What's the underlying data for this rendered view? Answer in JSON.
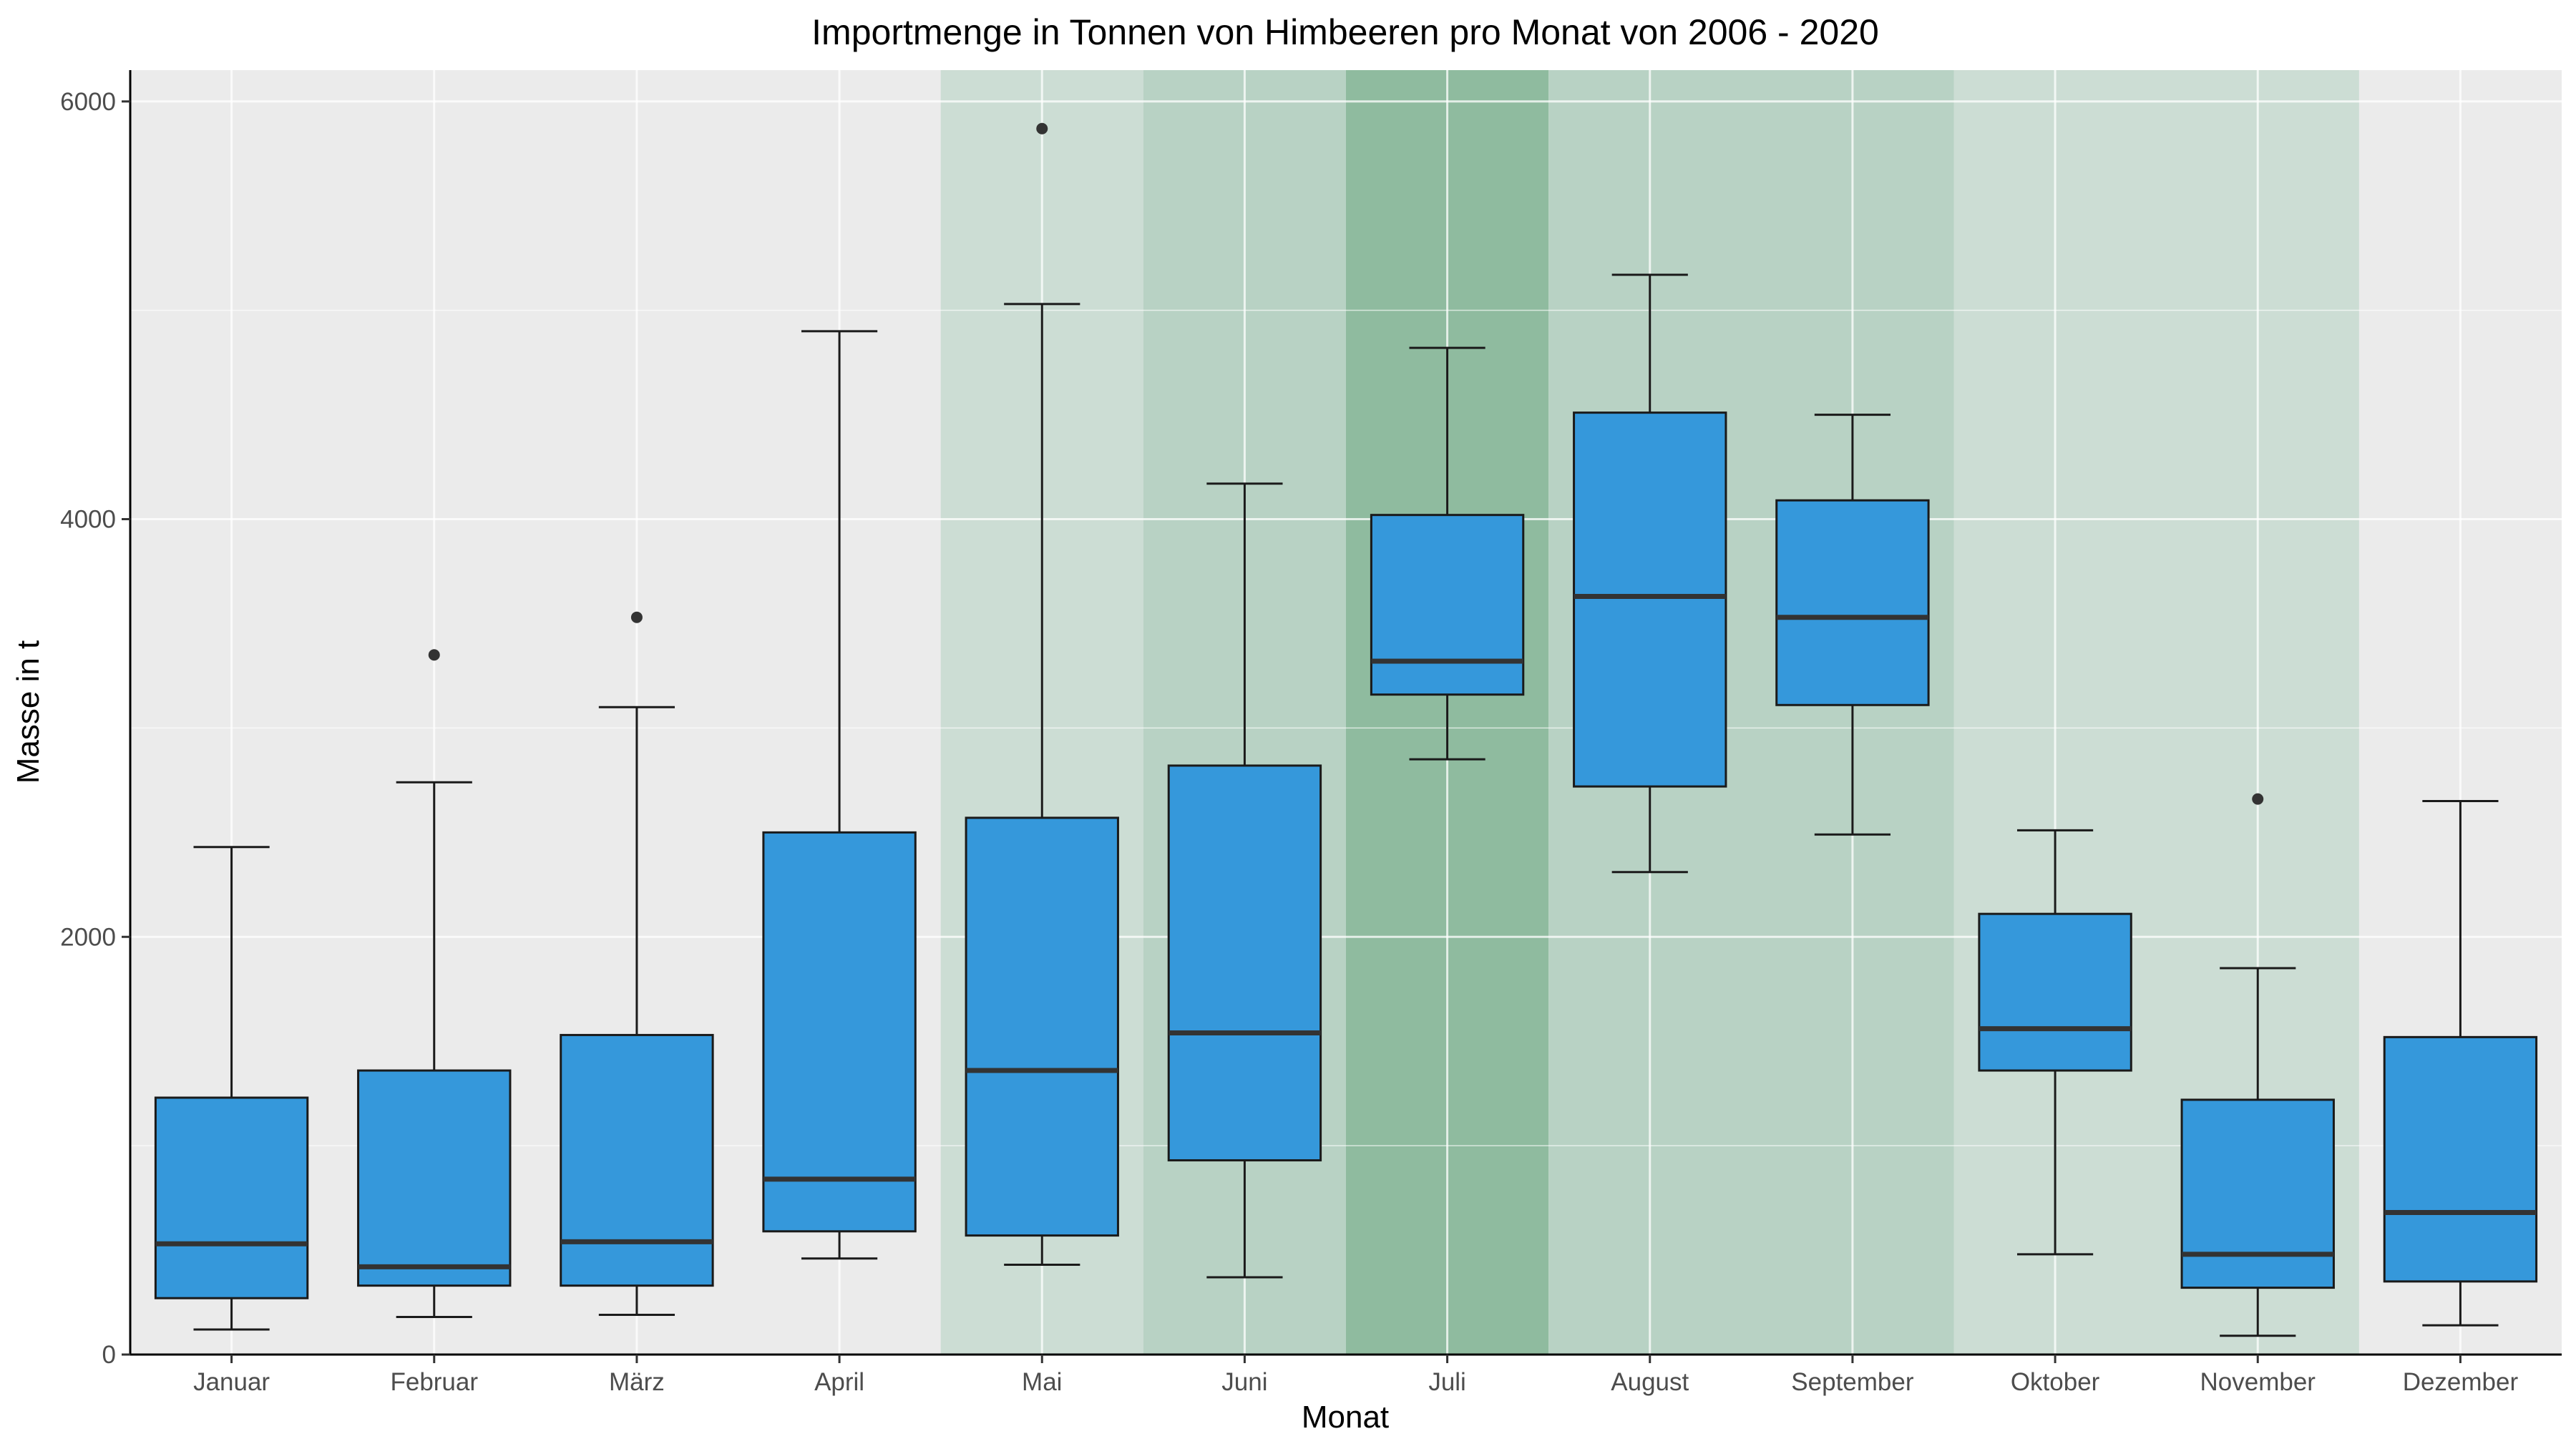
{
  "chart_data": {
    "type": "boxplot",
    "title": "Importmenge in Tonnen von Himbeeren pro Monat von 2006 - 2020",
    "xlabel": "Monat",
    "ylabel": "Masse in t",
    "ylim": [
      0,
      6150
    ],
    "yticks": [
      0,
      2000,
      4000,
      6000
    ],
    "grid": true,
    "categories": [
      "Januar",
      "Februar",
      "März",
      "April",
      "Mai",
      "Juni",
      "Juli",
      "August",
      "September",
      "Oktober",
      "November",
      "Dezember"
    ],
    "boxes": [
      {
        "whisker_low": 120,
        "q1": 270,
        "median": 530,
        "q3": 1230,
        "whisker_high": 2430,
        "outliers": []
      },
      {
        "whisker_low": 180,
        "q1": 330,
        "median": 420,
        "q3": 1360,
        "whisker_high": 2740,
        "outliers": [
          3350
        ]
      },
      {
        "whisker_low": 190,
        "q1": 330,
        "median": 540,
        "q3": 1530,
        "whisker_high": 3100,
        "outliers": [
          3530
        ]
      },
      {
        "whisker_low": 460,
        "q1": 590,
        "median": 840,
        "q3": 2500,
        "whisker_high": 4900,
        "outliers": []
      },
      {
        "whisker_low": 430,
        "q1": 570,
        "median": 1360,
        "q3": 2570,
        "whisker_high": 5030,
        "outliers": [
          5870
        ]
      },
      {
        "whisker_low": 370,
        "q1": 930,
        "median": 1540,
        "q3": 2820,
        "whisker_high": 4170,
        "outliers": []
      },
      {
        "whisker_low": 2850,
        "q1": 3160,
        "median": 3320,
        "q3": 4020,
        "whisker_high": 4820,
        "outliers": []
      },
      {
        "whisker_low": 2310,
        "q1": 2720,
        "median": 3630,
        "q3": 4510,
        "whisker_high": 5170,
        "outliers": []
      },
      {
        "whisker_low": 2490,
        "q1": 3110,
        "median": 3530,
        "q3": 4090,
        "whisker_high": 4500,
        "outliers": []
      },
      {
        "whisker_low": 480,
        "q1": 1360,
        "median": 1560,
        "q3": 2110,
        "whisker_high": 2510,
        "outliers": []
      },
      {
        "whisker_low": 90,
        "q1": 320,
        "median": 480,
        "q3": 1220,
        "whisker_high": 1850,
        "outliers": [
          2660
        ]
      },
      {
        "whisker_low": 140,
        "q1": 350,
        "median": 680,
        "q3": 1520,
        "whisker_high": 2650,
        "outliers": []
      }
    ],
    "season_bands": [
      {
        "from": "Mai",
        "to": "Mai",
        "color": "#ccddd4"
      },
      {
        "from": "Juni",
        "to": "Juni",
        "color": "#b8d2c4"
      },
      {
        "from": "Juli",
        "to": "Juli",
        "color": "#8fbb9f"
      },
      {
        "from": "August",
        "to": "September",
        "color": "#b8d2c4"
      },
      {
        "from": "Oktober",
        "to": "November",
        "color": "#ccddd4"
      }
    ],
    "colors": {
      "box_fill": "#3598db",
      "panel_bg": "#ebebeb",
      "grid": "#ffffff",
      "line": "#1a1a1a",
      "median": "#333333"
    }
  }
}
